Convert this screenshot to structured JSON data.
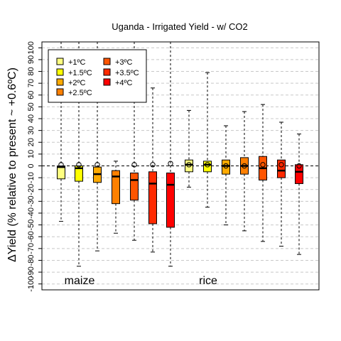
{
  "chart_data": {
    "type": "boxplot",
    "title": "Uganda - Irrigated Yield - w/ CO2",
    "ylabel": "ΔYield (% relative to present ~ +0.6ºC)",
    "xlabel": "",
    "ylim": [
      -105,
      105
    ],
    "yticks": [
      -100,
      -90,
      -80,
      -70,
      -60,
      -50,
      -40,
      -30,
      -20,
      -10,
      0,
      10,
      20,
      30,
      40,
      50,
      60,
      70,
      80,
      90,
      100
    ],
    "grid": "horizontal dashed",
    "zero_line": true,
    "legend": {
      "placement": "top-left",
      "entries": [
        {
          "label": "+1ºC",
          "color": "#FFFF80"
        },
        {
          "label": "+1.5ºC",
          "color": "#FFFF00"
        },
        {
          "label": "+2ºC",
          "color": "#FFAA00"
        },
        {
          "label": "+2.5ºC",
          "color": "#FF8000"
        },
        {
          "label": "+3ºC",
          "color": "#FF5500"
        },
        {
          "label": "+3.5ºC",
          "color": "#FF2A00"
        },
        {
          "label": "+4ºC",
          "color": "#FF0000"
        }
      ]
    },
    "groups": [
      {
        "label": "maize",
        "boxes": [
          {
            "scenario": "+1ºC",
            "whisker_low": -47,
            "q1": -11,
            "median": -1,
            "q3": 0,
            "whisker_high": 105,
            "mean": 1
          },
          {
            "scenario": "+1.5ºC",
            "whisker_low": -85,
            "q1": -13,
            "median": -2,
            "q3": 0,
            "whisker_high": 105,
            "mean": 1
          },
          {
            "scenario": "+2ºC",
            "whisker_low": -72,
            "q1": -14,
            "median": -7,
            "q3": -1,
            "whisker_high": 105,
            "mean": 1
          },
          {
            "scenario": "+2.5ºC",
            "whisker_low": -57,
            "q1": -32,
            "median": -9,
            "q3": -4,
            "whisker_high": 4,
            "mean": null
          },
          {
            "scenario": "+3ºC",
            "whisker_low": -63,
            "q1": -29,
            "median": -12,
            "q3": -6,
            "whisker_high": 105,
            "mean": 1
          },
          {
            "scenario": "+3.5ºC",
            "whisker_low": -73,
            "q1": -49,
            "median": -15,
            "q3": -5,
            "whisker_high": 66,
            "mean": 1
          },
          {
            "scenario": "+4ºC",
            "whisker_low": -85,
            "q1": -52,
            "median": -16,
            "q3": -6,
            "whisker_high": 105,
            "mean": 2
          }
        ]
      },
      {
        "label": "rice",
        "boxes": [
          {
            "scenario": "+1ºC",
            "whisker_low": -18,
            "q1": -5,
            "median": 1,
            "q3": 5,
            "whisker_high": 47,
            "mean": 1
          },
          {
            "scenario": "+1.5ºC",
            "whisker_low": -35,
            "q1": -5,
            "median": 1,
            "q3": 4,
            "whisker_high": 79,
            "mean": 1
          },
          {
            "scenario": "+2ºC",
            "whisker_low": -50,
            "q1": -7,
            "median": 0,
            "q3": 5,
            "whisker_high": 34,
            "mean": 0
          },
          {
            "scenario": "+2.5ºC",
            "whisker_low": -55,
            "q1": -7,
            "median": 0,
            "q3": 7,
            "whisker_high": 46,
            "mean": 0
          },
          {
            "scenario": "+3ºC",
            "whisker_low": -64,
            "q1": -12,
            "median": -2,
            "q3": 8,
            "whisker_high": 52,
            "mean": 1
          },
          {
            "scenario": "+3.5ºC",
            "whisker_low": -68,
            "q1": -10,
            "median": -4,
            "q3": 5,
            "whisker_high": 37,
            "mean": 1
          },
          {
            "scenario": "+4ºC",
            "whisker_low": -75,
            "q1": -15,
            "median": -5,
            "q3": 1,
            "whisker_high": 27,
            "mean": 0
          }
        ]
      }
    ]
  }
}
